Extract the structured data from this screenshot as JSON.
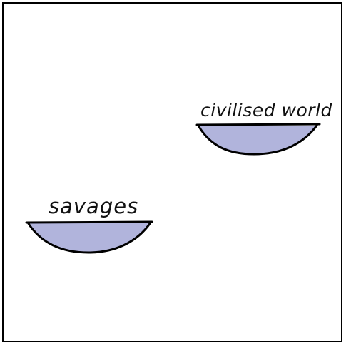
{
  "labels": {
    "right_pan": "civilised world",
    "left_pan": "savages"
  },
  "colors": {
    "pan_fill": "#b1b4dc",
    "stroke": "#000000",
    "frame": "#000000",
    "background": "#ffffff"
  }
}
